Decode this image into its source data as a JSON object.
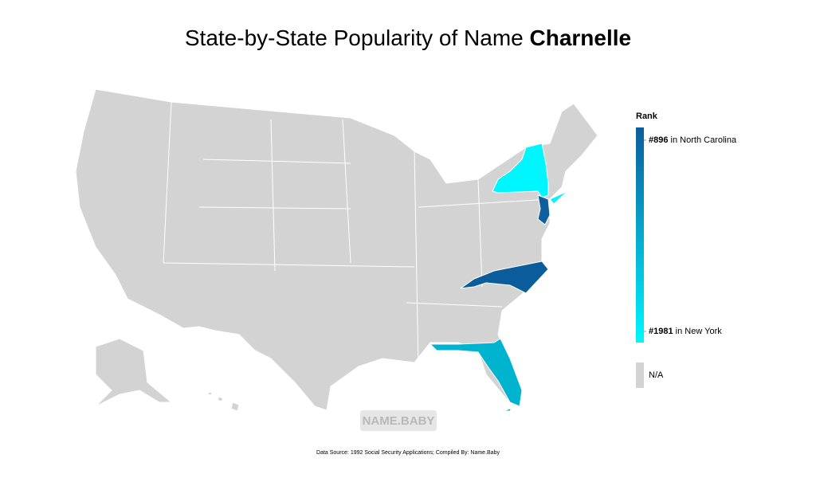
{
  "title": {
    "text": "State-by-State Popularity of Name ",
    "name": "Charnelle"
  },
  "legend": {
    "title": "Rank",
    "top": {
      "rank": {
        "value": 896,
        "label": "#896"
      },
      "state": "in North Carolina"
    },
    "bottom": {
      "rank": {
        "value": 1981,
        "label": "#1981"
      },
      "state": "in New York"
    },
    "na": "N/A",
    "colors": [
      "#0a5d9a",
      "#00f6ff"
    ],
    "na_color": "#d3d3d3"
  },
  "watermark": "NAME.BABY",
  "source": "Data Source: 1992 Social Security Applications; Compiled By: Name.Baby"
}
